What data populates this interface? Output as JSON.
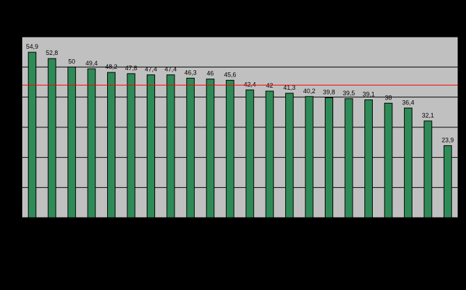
{
  "chart_data": {
    "type": "bar",
    "categories": [
      null,
      null,
      null,
      null,
      null,
      null,
      null,
      null,
      null,
      null,
      null,
      null,
      null,
      null,
      null,
      null,
      null,
      null,
      null,
      null,
      null,
      null
    ],
    "values": [
      54.9,
      52.8,
      50,
      49.4,
      48.2,
      47.8,
      47.4,
      47.4,
      46.3,
      46,
      45.6,
      42.4,
      42,
      41.3,
      40.2,
      39.8,
      39.5,
      39.1,
      38,
      36.4,
      32.1,
      23.9
    ],
    "value_labels": [
      "54,9",
      "52,8",
      "50",
      "49,4",
      "48,2",
      "47,8",
      "47,4",
      "47,4",
      "46,3",
      "46",
      "45,6",
      "42,4",
      "42",
      "41,3",
      "40,2",
      "39,8",
      "39,5",
      "39,1",
      "38",
      "36,4",
      "32,1",
      "23,9"
    ],
    "color": "#2e8b57",
    "ylim": [
      0,
      60
    ],
    "yticks": [
      0,
      10,
      20,
      30,
      40,
      50,
      60
    ],
    "grid": true,
    "reference_line": {
      "value": 44,
      "color": "#ff0000"
    }
  }
}
